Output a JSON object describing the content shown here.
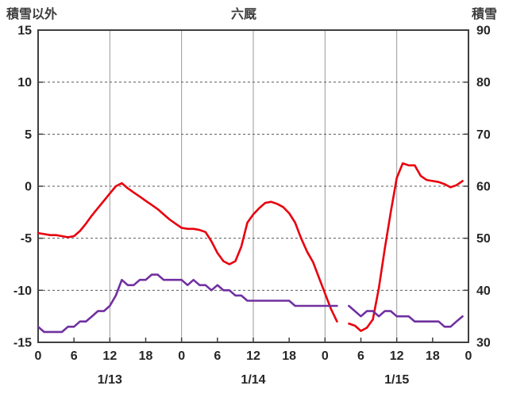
{
  "chart": {
    "title": "六厩",
    "left_axis_title": "積雪以外",
    "right_axis_title": "積雪"
  },
  "colors": {
    "red_line": "#e8000d",
    "purple_line": "#7030a0",
    "grid_vertical": "#9a9a9a",
    "grid_horizontal": "#595959",
    "border": "#3f3f3f",
    "text": "#262626"
  },
  "chart_data": {
    "type": "line",
    "title": "六厩",
    "legend": "none",
    "grid": {
      "horizontal": "dashed",
      "vertical": "solid"
    },
    "left_axis": {
      "label": "積雪以外",
      "min": -15,
      "max": 15,
      "ticks": [
        15,
        10,
        5,
        0,
        -5,
        -10,
        -15
      ]
    },
    "right_axis": {
      "label": "積雪",
      "min": 30,
      "max": 90,
      "ticks": [
        90,
        80,
        70,
        60,
        50,
        40,
        30
      ]
    },
    "x_axis": {
      "hours_span": 72,
      "tick_interval_hours": 6,
      "tick_labels": [
        "0",
        "6",
        "12",
        "18",
        "0",
        "6",
        "12",
        "18",
        "0",
        "6",
        "12",
        "18",
        "0"
      ],
      "day_labels": [
        {
          "label": "1/13",
          "hour": 12
        },
        {
          "label": "1/14",
          "hour": 36
        },
        {
          "label": "1/15",
          "hour": 60
        }
      ],
      "gridline_hours": [
        12,
        24,
        36,
        48,
        60
      ]
    },
    "series": [
      {
        "name": "積雪以外",
        "data_name": "temperature-line",
        "axis": "left",
        "color": "#e8000d",
        "values": [
          -4.5,
          -4.6,
          -4.7,
          -4.7,
          -4.8,
          -4.9,
          -4.8,
          -4.3,
          -3.6,
          -2.8,
          -2.1,
          -1.4,
          -0.7,
          0.0,
          0.3,
          -0.2,
          -0.6,
          -1.0,
          -1.4,
          -1.8,
          -2.2,
          -2.7,
          -3.2,
          -3.6,
          -4.0,
          -4.1,
          -4.1,
          -4.2,
          -4.4,
          -5.3,
          -6.4,
          -7.2,
          -7.5,
          -7.2,
          -5.8,
          -3.5,
          -2.7,
          -2.1,
          -1.6,
          -1.5,
          -1.7,
          -2.0,
          -2.6,
          -3.5,
          -5.0,
          -6.3,
          -7.3,
          -8.8,
          -10.3,
          -11.8,
          -13.0,
          null,
          -13.2,
          -13.4,
          -13.9,
          -13.6,
          -12.8,
          -9.8,
          -6.0,
          -2.5,
          0.8,
          2.2,
          2.0,
          2.0,
          1.0,
          0.6,
          0.5,
          0.4,
          0.2,
          -0.1,
          0.1,
          0.5
        ]
      },
      {
        "name": "積雪",
        "data_name": "snow-depth-line",
        "axis": "right",
        "color": "#7030a0",
        "values": [
          33,
          32,
          32,
          32,
          32,
          33,
          33,
          34,
          34,
          35,
          36,
          36,
          37,
          39,
          42,
          41,
          41,
          42,
          42,
          43,
          43,
          42,
          42,
          42,
          42,
          41,
          42,
          41,
          41,
          40,
          41,
          40,
          40,
          39,
          39,
          38,
          38,
          38,
          38,
          38,
          38,
          38,
          38,
          37,
          37,
          37,
          37,
          37,
          37,
          37,
          37,
          null,
          37,
          36,
          35,
          36,
          36,
          35,
          36,
          36,
          35,
          35,
          35,
          34,
          34,
          34,
          34,
          34,
          33,
          33,
          34,
          35
        ]
      }
    ]
  }
}
